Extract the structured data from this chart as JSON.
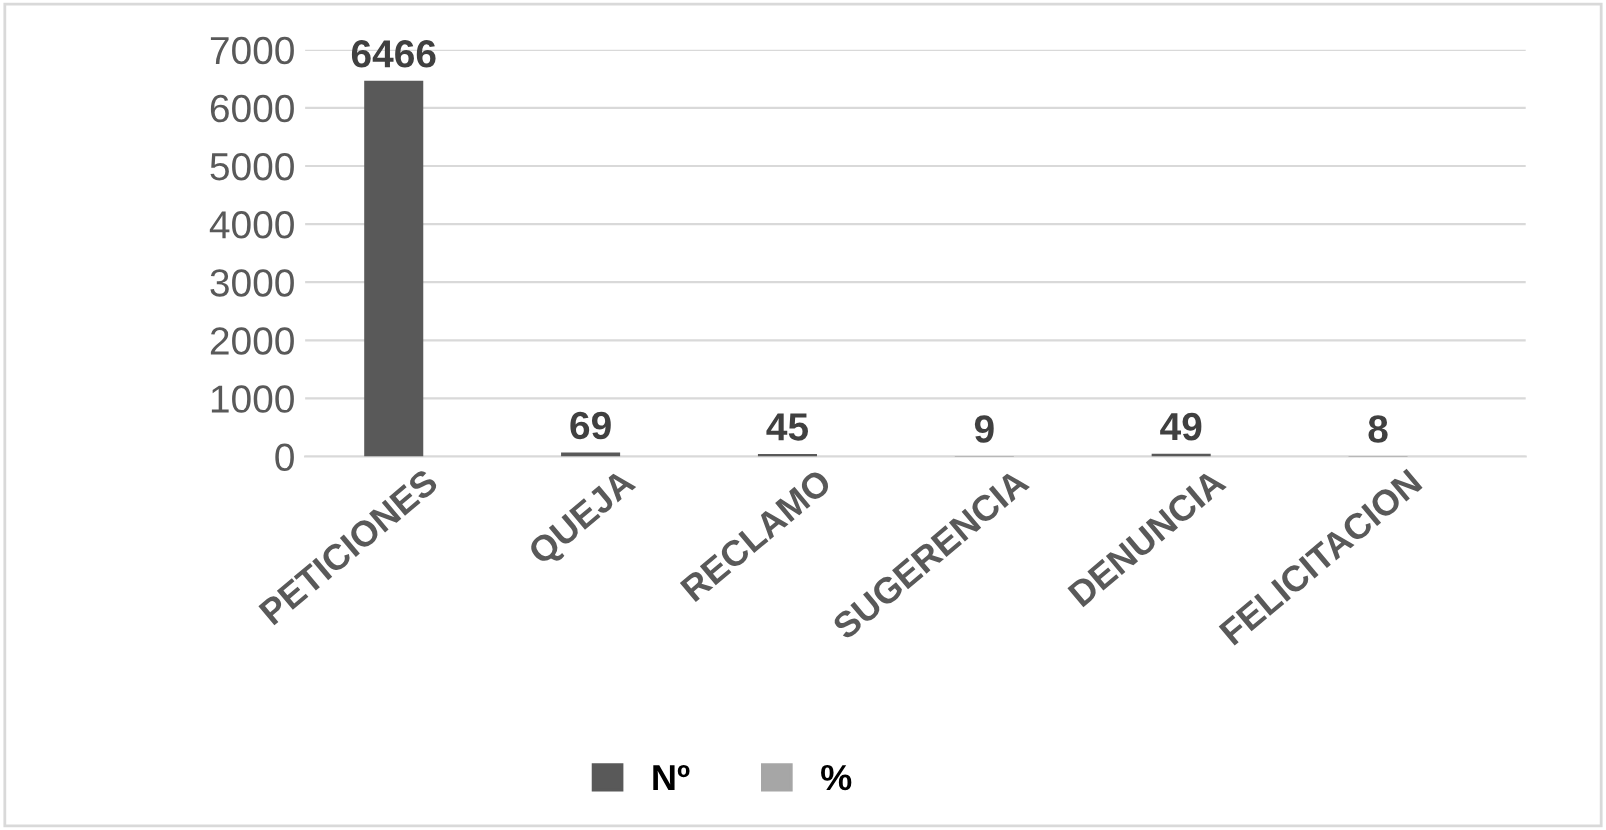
{
  "chart_data": {
    "type": "bar",
    "categories": [
      "PETICIONES",
      "QUEJA",
      "RECLAMO",
      "SUGERENCIA",
      "DENUNCIA",
      "FELICITACION"
    ],
    "series": [
      {
        "name": "Nº",
        "color": "#595959",
        "values": [
          6466,
          69,
          45,
          9,
          49,
          8
        ],
        "value_labels": [
          "6466",
          "69",
          "45",
          "9",
          "49",
          "8"
        ]
      },
      {
        "name": "%",
        "color": "#a6a6a6",
        "values": [
          0,
          0,
          0,
          0,
          0,
          0
        ]
      }
    ],
    "ylim": [
      0,
      7000
    ],
    "yticks": [
      0,
      1000,
      2000,
      3000,
      4000,
      5000,
      6000,
      7000
    ],
    "grid": "y",
    "legend": "bottom"
  }
}
